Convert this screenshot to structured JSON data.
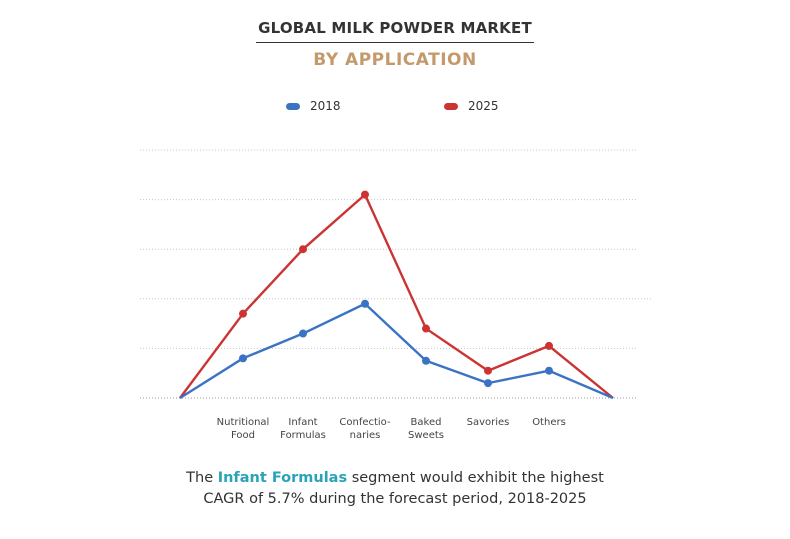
{
  "header": {
    "title": "GLOBAL MILK POWDER MARKET",
    "subtitle": "BY APPLICATION"
  },
  "chart_data": {
    "type": "line",
    "categories": [
      "",
      "Nutritional Food",
      "Infant Formulas",
      "Confectio-naries",
      "Baked Sweets",
      "Savories",
      "Others",
      ""
    ],
    "category_lines": [
      [
        ""
      ],
      [
        "Nutritional",
        "Food"
      ],
      [
        "Infant",
        "Formulas"
      ],
      [
        "Confectio-",
        "naries"
      ],
      [
        "Baked",
        "Sweets"
      ],
      [
        "Savories"
      ],
      [
        "Others"
      ],
      [
        ""
      ]
    ],
    "series": [
      {
        "name": "2018",
        "color": "#3b73c4",
        "values": [
          0,
          0.8,
          1.3,
          1.9,
          0.75,
          0.3,
          0.55,
          0
        ]
      },
      {
        "name": "2025",
        "color": "#cc3333",
        "values": [
          0,
          1.7,
          3.0,
          4.1,
          1.4,
          0.55,
          1.05,
          0
        ]
      }
    ],
    "ylim": [
      0,
      5
    ],
    "grid": true,
    "legend_position": "top-center",
    "xlabel": "",
    "ylabel": ""
  },
  "caption": {
    "prefix": "The ",
    "highlight": "Infant Formulas",
    "rest": " segment would exhibit the highest",
    "line2": "CAGR of 5.7% during the forecast period, 2018-2025"
  }
}
